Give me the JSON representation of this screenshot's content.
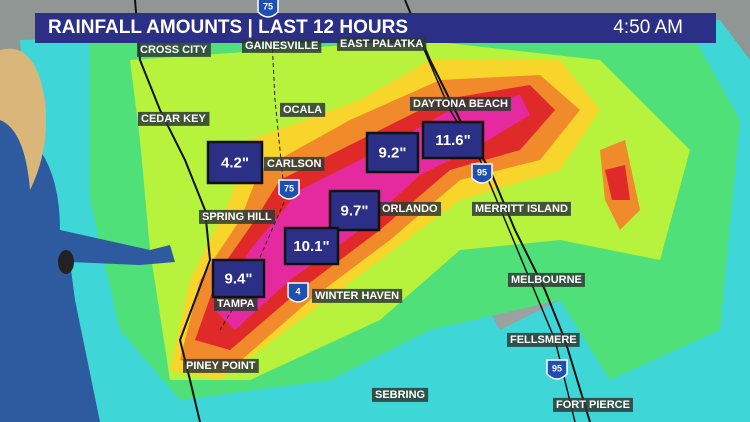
{
  "header": {
    "title": "RAINFALL AMOUNTS | LAST 12 HOURS",
    "time": "4:50 AM"
  },
  "cities": [
    "CROSS CITY",
    "GAINESVILLE",
    "EAST PALATKA",
    "OCALA",
    "CEDAR KEY",
    "DAYTONA BEACH",
    "CARLSON",
    "SPRING HILL",
    "ORLANDO",
    "MERRITT ISLAND",
    "MELBOURNE",
    "TAMPA",
    "WINTER HAVEN",
    "FELLSMERE",
    "PINEY POINT",
    "SEBRING",
    "FORT PIERCE"
  ],
  "rainfall_amounts": [
    "4.2\"",
    "9.2\"",
    "11.6\"",
    "9.7\"",
    "10.1\"",
    "9.4\""
  ],
  "highways": [
    "75",
    "75",
    "4",
    "95",
    "95"
  ]
}
